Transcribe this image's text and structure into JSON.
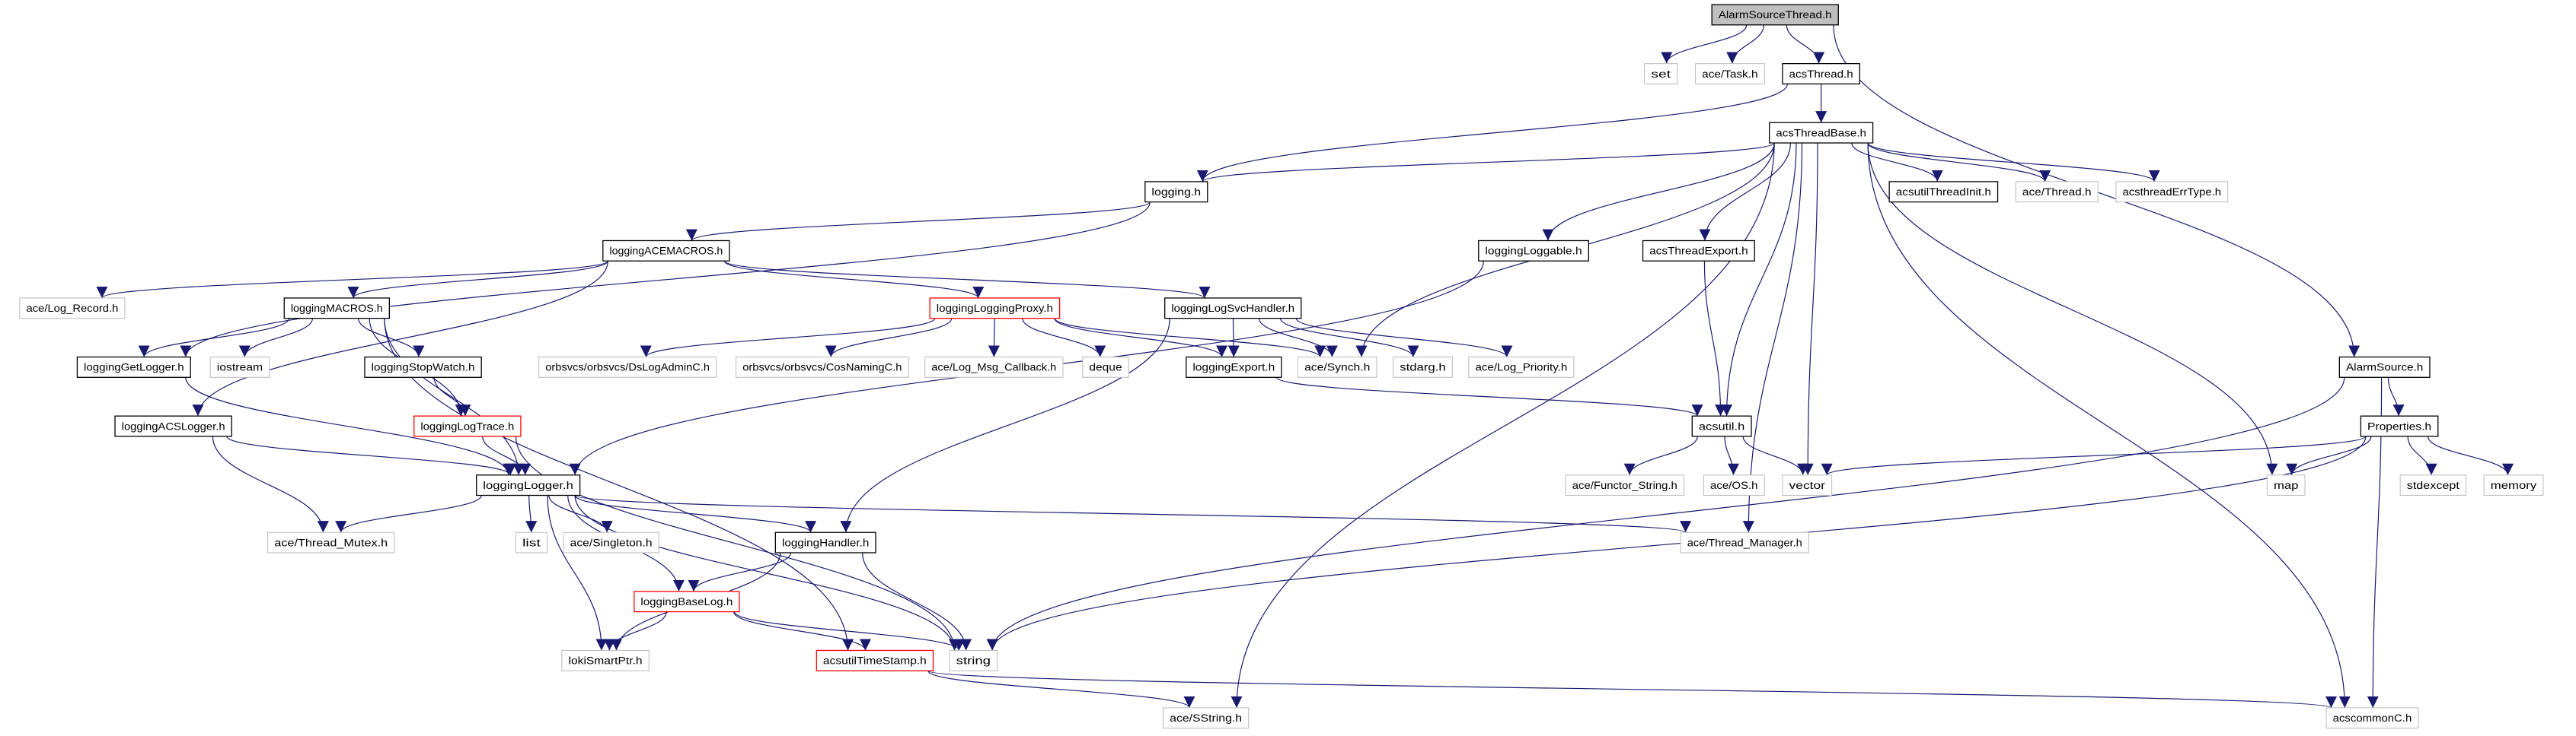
{
  "colors": {
    "edge": "#191970",
    "root_fill": "#bfbfbf",
    "documented_border": "#000000",
    "external_border": "#bfbfbf",
    "incomplete_border": "#ff0000"
  },
  "nodes": [
    {
      "id": "AlarmSourceThread.h",
      "kind": "root"
    },
    {
      "id": "set",
      "kind": "external"
    },
    {
      "id": "ace/Task.h",
      "kind": "external"
    },
    {
      "id": "acsThread.h",
      "kind": "documented"
    },
    {
      "id": "acsThreadBase.h",
      "kind": "documented"
    },
    {
      "id": "logging.h",
      "kind": "documented"
    },
    {
      "id": "acsutilThreadInit.h",
      "kind": "documented"
    },
    {
      "id": "ace/Thread.h",
      "kind": "external"
    },
    {
      "id": "acsthreadErrType.h",
      "kind": "external"
    },
    {
      "id": "loggingACEMACROS.h",
      "kind": "documented"
    },
    {
      "id": "loggingLoggable.h",
      "kind": "documented"
    },
    {
      "id": "acsThreadExport.h",
      "kind": "documented"
    },
    {
      "id": "ace/Log_Record.h",
      "kind": "external"
    },
    {
      "id": "loggingMACROS.h",
      "kind": "documented"
    },
    {
      "id": "loggingLoggingProxy.h",
      "kind": "incomplete"
    },
    {
      "id": "loggingLogSvcHandler.h",
      "kind": "documented"
    },
    {
      "id": "loggingGetLogger.h",
      "kind": "documented"
    },
    {
      "id": "iostream",
      "kind": "external"
    },
    {
      "id": "loggingStopWatch.h",
      "kind": "documented"
    },
    {
      "id": "orbsvcs/orbsvcs/DsLogAdminC.h",
      "kind": "external"
    },
    {
      "id": "orbsvcs/orbsvcs/CosNamingC.h",
      "kind": "external"
    },
    {
      "id": "ace/Log_Msg_Callback.h",
      "kind": "external"
    },
    {
      "id": "deque",
      "kind": "external"
    },
    {
      "id": "loggingExport.h",
      "kind": "documented"
    },
    {
      "id": "ace/Synch.h",
      "kind": "external"
    },
    {
      "id": "stdarg.h",
      "kind": "external"
    },
    {
      "id": "ace/Log_Priority.h",
      "kind": "external"
    },
    {
      "id": "AlarmSource.h",
      "kind": "documented"
    },
    {
      "id": "loggingACSLogger.h",
      "kind": "documented"
    },
    {
      "id": "loggingLogTrace.h",
      "kind": "incomplete"
    },
    {
      "id": "acsutil.h",
      "kind": "documented"
    },
    {
      "id": "Properties.h",
      "kind": "documented"
    },
    {
      "id": "loggingLogger.h",
      "kind": "documented"
    },
    {
      "id": "ace/Functor_String.h",
      "kind": "external"
    },
    {
      "id": "ace/OS.h",
      "kind": "external"
    },
    {
      "id": "vector",
      "kind": "external"
    },
    {
      "id": "map",
      "kind": "external"
    },
    {
      "id": "stdexcept",
      "kind": "external"
    },
    {
      "id": "memory",
      "kind": "external"
    },
    {
      "id": "ace/Thread_Mutex.h",
      "kind": "external"
    },
    {
      "id": "list",
      "kind": "external"
    },
    {
      "id": "ace/Singleton.h",
      "kind": "external"
    },
    {
      "id": "loggingHandler.h",
      "kind": "documented"
    },
    {
      "id": "ace/Thread_Manager.h",
      "kind": "external"
    },
    {
      "id": "loggingBaseLog.h",
      "kind": "incomplete"
    },
    {
      "id": "lokiSmartPtr.h",
      "kind": "external"
    },
    {
      "id": "acsutilTimeStamp.h",
      "kind": "incomplete"
    },
    {
      "id": "string",
      "kind": "external"
    },
    {
      "id": "ace/SString.h",
      "kind": "external"
    },
    {
      "id": "acscommonC.h",
      "kind": "external"
    }
  ],
  "edges": [
    [
      "AlarmSourceThread.h",
      "set"
    ],
    [
      "AlarmSourceThread.h",
      "ace/Task.h"
    ],
    [
      "AlarmSourceThread.h",
      "acsThread.h"
    ],
    [
      "AlarmSourceThread.h",
      "AlarmSource.h"
    ],
    [
      "acsThread.h",
      "acsThreadBase.h"
    ],
    [
      "acsThread.h",
      "logging.h"
    ],
    [
      "acsThreadBase.h",
      "logging.h"
    ],
    [
      "acsThreadBase.h",
      "acsutilThreadInit.h"
    ],
    [
      "acsThreadBase.h",
      "ace/Thread.h"
    ],
    [
      "acsThreadBase.h",
      "acsthreadErrType.h"
    ],
    [
      "acsThreadBase.h",
      "loggingLoggable.h"
    ],
    [
      "acsThreadBase.h",
      "acsThreadExport.h"
    ],
    [
      "acsThreadBase.h",
      "ace/Synch.h"
    ],
    [
      "acsThreadBase.h",
      "acsutil.h"
    ],
    [
      "acsThreadBase.h",
      "vector"
    ],
    [
      "acsThreadBase.h",
      "ace/Thread_Manager.h"
    ],
    [
      "acsThreadBase.h",
      "map"
    ],
    [
      "acsThreadBase.h",
      "acscommonC.h"
    ],
    [
      "acsThreadBase.h",
      "ace/SString.h"
    ],
    [
      "logging.h",
      "loggingACEMACROS.h"
    ],
    [
      "logging.h",
      "loggingGetLogger.h"
    ],
    [
      "loggingACEMACROS.h",
      "ace/Log_Record.h"
    ],
    [
      "loggingACEMACROS.h",
      "loggingMACROS.h"
    ],
    [
      "loggingACEMACROS.h",
      "loggingACSLogger.h"
    ],
    [
      "loggingACEMACROS.h",
      "loggingLoggingProxy.h"
    ],
    [
      "loggingACEMACROS.h",
      "loggingLogSvcHandler.h"
    ],
    [
      "loggingMACROS.h",
      "loggingGetLogger.h"
    ],
    [
      "loggingMACROS.h",
      "iostream"
    ],
    [
      "loggingMACROS.h",
      "loggingStopWatch.h"
    ],
    [
      "loggingMACROS.h",
      "loggingLogTrace.h"
    ],
    [
      "loggingMACROS.h",
      "loggingLogger.h"
    ],
    [
      "loggingMACROS.h",
      "acsutilTimeStamp.h"
    ],
    [
      "loggingLoggingProxy.h",
      "orbsvcs/orbsvcs/DsLogAdminC.h"
    ],
    [
      "loggingLoggingProxy.h",
      "orbsvcs/orbsvcs/CosNamingC.h"
    ],
    [
      "loggingLoggingProxy.h",
      "ace/Log_Msg_Callback.h"
    ],
    [
      "loggingLoggingProxy.h",
      "deque"
    ],
    [
      "loggingLoggingProxy.h",
      "loggingExport.h"
    ],
    [
      "loggingLoggingProxy.h",
      "ace/Synch.h"
    ],
    [
      "loggingLogSvcHandler.h",
      "loggingExport.h"
    ],
    [
      "loggingLogSvcHandler.h",
      "ace/Synch.h"
    ],
    [
      "loggingLogSvcHandler.h",
      "stdarg.h"
    ],
    [
      "loggingLogSvcHandler.h",
      "ace/Log_Priority.h"
    ],
    [
      "loggingLogSvcHandler.h",
      "loggingHandler.h"
    ],
    [
      "loggingExport.h",
      "acsutil.h"
    ],
    [
      "loggingLoggable.h",
      "loggingLogger.h"
    ],
    [
      "acsThreadExport.h",
      "acsutil.h"
    ],
    [
      "acsutil.h",
      "ace/Functor_String.h"
    ],
    [
      "acsutil.h",
      "ace/OS.h"
    ],
    [
      "acsutil.h",
      "vector"
    ],
    [
      "loggingGetLogger.h",
      "loggingLogger.h"
    ],
    [
      "loggingACSLogger.h",
      "loggingLogger.h"
    ],
    [
      "loggingACSLogger.h",
      "ace/Thread_Mutex.h"
    ],
    [
      "loggingStopWatch.h",
      "loggingLogTrace.h"
    ],
    [
      "loggingLogTrace.h",
      "loggingLogger.h"
    ],
    [
      "loggingLogTrace.h",
      "string"
    ],
    [
      "loggingLogger.h",
      "ace/Thread_Mutex.h"
    ],
    [
      "loggingLogger.h",
      "list"
    ],
    [
      "loggingLogger.h",
      "ace/Singleton.h"
    ],
    [
      "loggingLogger.h",
      "loggingHandler.h"
    ],
    [
      "loggingLogger.h",
      "loggingBaseLog.h"
    ],
    [
      "loggingLogger.h",
      "lokiSmartPtr.h"
    ],
    [
      "loggingLogger.h",
      "string"
    ],
    [
      "loggingLogger.h",
      "ace/Thread_Manager.h"
    ],
    [
      "loggingHandler.h",
      "loggingBaseLog.h"
    ],
    [
      "loggingHandler.h",
      "lokiSmartPtr.h"
    ],
    [
      "loggingHandler.h",
      "string"
    ],
    [
      "loggingBaseLog.h",
      "lokiSmartPtr.h"
    ],
    [
      "loggingBaseLog.h",
      "acsutilTimeStamp.h"
    ],
    [
      "loggingBaseLog.h",
      "string"
    ],
    [
      "acsutilTimeStamp.h",
      "ace/SString.h"
    ],
    [
      "acsutilTimeStamp.h",
      "acscommonC.h"
    ],
    [
      "AlarmSource.h",
      "Properties.h"
    ],
    [
      "AlarmSource.h",
      "string"
    ],
    [
      "AlarmSource.h",
      "acscommonC.h"
    ],
    [
      "Properties.h",
      "vector"
    ],
    [
      "Properties.h",
      "map"
    ],
    [
      "Properties.h",
      "stdexcept"
    ],
    [
      "Properties.h",
      "memory"
    ],
    [
      "Properties.h",
      "string"
    ]
  ]
}
